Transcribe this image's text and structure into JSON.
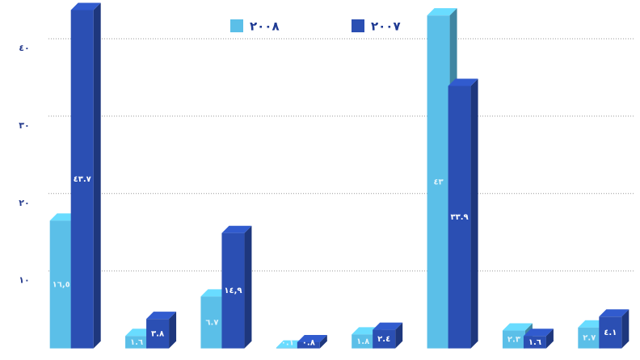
{
  "chart_data": {
    "type": "bar3d",
    "categories": [
      null,
      null,
      null,
      null,
      null,
      null,
      null,
      null
    ],
    "series": [
      {
        "name": "٢٠٠٨",
        "color": "#5bbfe8",
        "values": [
          16.5,
          1.6,
          6.7,
          0.1,
          1.8,
          43,
          2.3,
          2.7
        ],
        "value_labels": [
          "١٦,٥",
          "١.٦",
          "٦.٧",
          "٠.١",
          "١.٨",
          "٤٣",
          "٢.٣",
          "٢.٧"
        ]
      },
      {
        "name": "٢٠٠٧",
        "color": "#2b4fb3",
        "values": [
          43.7,
          3.8,
          14.9,
          0.8,
          2.4,
          33.9,
          1.6,
          4.1
        ],
        "value_labels": [
          "٤٣.٧",
          "٣.٨",
          "١٤,٩",
          "٠.٨",
          "٢.٤",
          "٣٣.٩",
          "١.٦",
          "٤.١"
        ]
      }
    ],
    "ylim": [
      -1.5,
      45
    ],
    "yticks": [
      {
        "value": 10,
        "label": "١٠"
      },
      {
        "value": 20,
        "label": "٢٠"
      },
      {
        "value": 30,
        "label": "٣٠"
      },
      {
        "value": 40,
        "label": "٤٠"
      }
    ],
    "grid": true
  }
}
